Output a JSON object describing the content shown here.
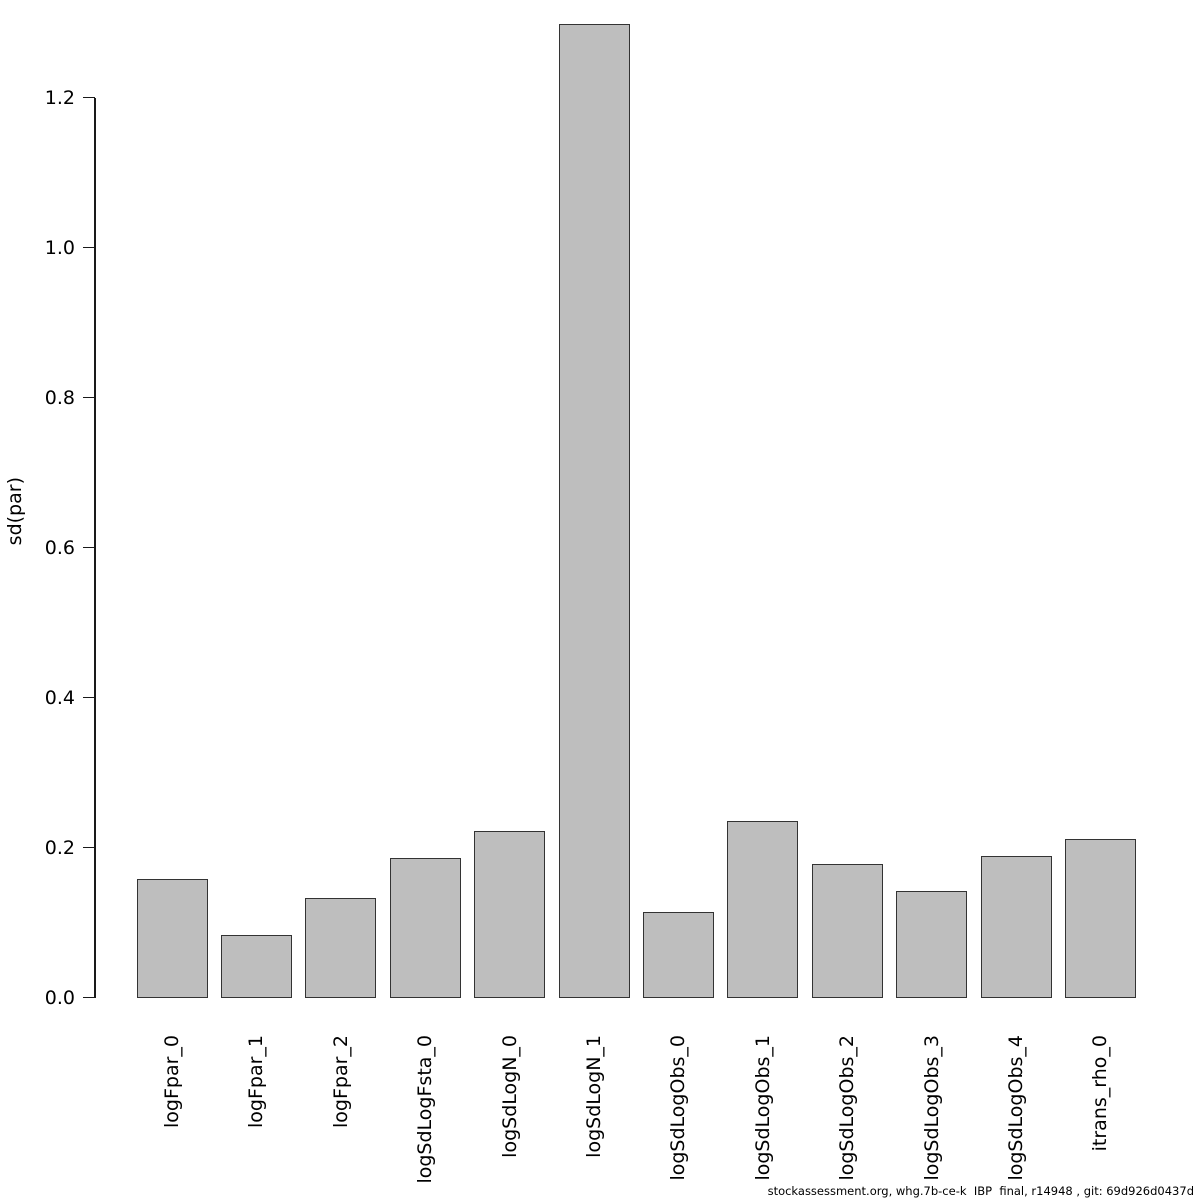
{
  "figure": {
    "background": "#ffffff"
  },
  "footer": {
    "text": "stockassessment.org, whg.7b-ce-k  IBP  final, r14948 , git: 69d926d0437d"
  },
  "chart_data": {
    "type": "bar",
    "title": "",
    "xlabel": "",
    "ylabel": "sd(par)",
    "categories": [
      "logFpar_0",
      "logFpar_1",
      "logFpar_2",
      "logSdLogFsta_0",
      "logSdLogN_0",
      "logSdLogN_1",
      "logSdLogObs_0",
      "logSdLogObs_1",
      "logSdLogObs_2",
      "logSdLogObs_3",
      "logSdLogObs_4",
      "itrans_rho_0"
    ],
    "values": [
      0.158,
      0.084,
      0.133,
      0.186,
      0.222,
      1.298,
      0.114,
      0.236,
      0.178,
      0.142,
      0.189,
      0.211
    ],
    "ylim": [
      0,
      1.3
    ],
    "yticks": [
      0.0,
      0.2,
      0.4,
      0.6,
      0.8,
      1.0,
      1.2
    ],
    "ytick_labels": [
      "0.0",
      "0.2",
      "0.4",
      "0.6",
      "0.8",
      "1.0",
      "1.2"
    ],
    "grid": false,
    "legend_position": "none",
    "bar_fill": "#bebebe",
    "bar_border": "#333333",
    "axis_color": "#1a1a1a"
  }
}
